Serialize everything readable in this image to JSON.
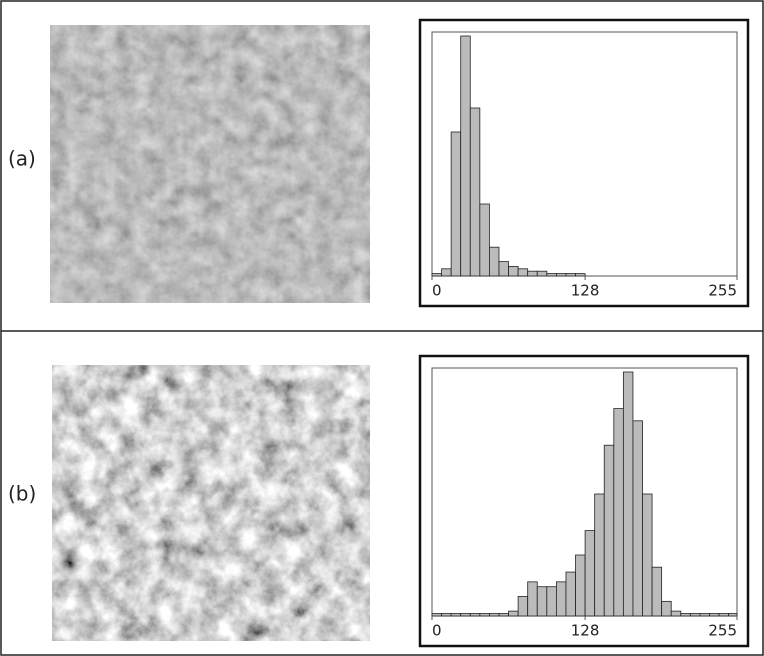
{
  "labels": [
    "(a)",
    "(b)"
  ],
  "chart_data": [
    {
      "type": "histogram",
      "bins": [
        0,
        8,
        16,
        24,
        32,
        40,
        48,
        56,
        64,
        72,
        80,
        88,
        96,
        104,
        112,
        120,
        128,
        136,
        144,
        152,
        160,
        168,
        176,
        184,
        192,
        200,
        208,
        216,
        224,
        232,
        240,
        248,
        255
      ],
      "values": [
        1,
        3,
        60,
        100,
        70,
        30,
        12,
        6,
        4,
        3,
        2,
        2,
        1,
        1,
        1,
        1,
        0,
        0,
        0,
        0,
        0,
        0,
        0,
        0,
        0,
        0,
        0,
        0,
        0,
        0,
        0,
        0
      ],
      "xlim": [
        0,
        255
      ],
      "xticks": [
        0,
        128,
        255
      ],
      "color": "#bbbbbb"
    },
    {
      "type": "histogram",
      "bins": [
        0,
        8,
        16,
        24,
        32,
        40,
        48,
        56,
        64,
        72,
        80,
        88,
        96,
        104,
        112,
        120,
        128,
        136,
        144,
        152,
        160,
        168,
        176,
        184,
        192,
        200,
        208,
        216,
        224,
        232,
        240,
        248,
        255
      ],
      "values": [
        1,
        1,
        1,
        1,
        1,
        1,
        1,
        1,
        2,
        8,
        14,
        12,
        12,
        14,
        18,
        25,
        35,
        50,
        70,
        85,
        100,
        80,
        50,
        20,
        6,
        2,
        1,
        1,
        1,
        1,
        1,
        1
      ],
      "xlim": [
        0,
        255
      ],
      "xticks": [
        0,
        128,
        255
      ],
      "color": "#bbbbbb"
    }
  ]
}
